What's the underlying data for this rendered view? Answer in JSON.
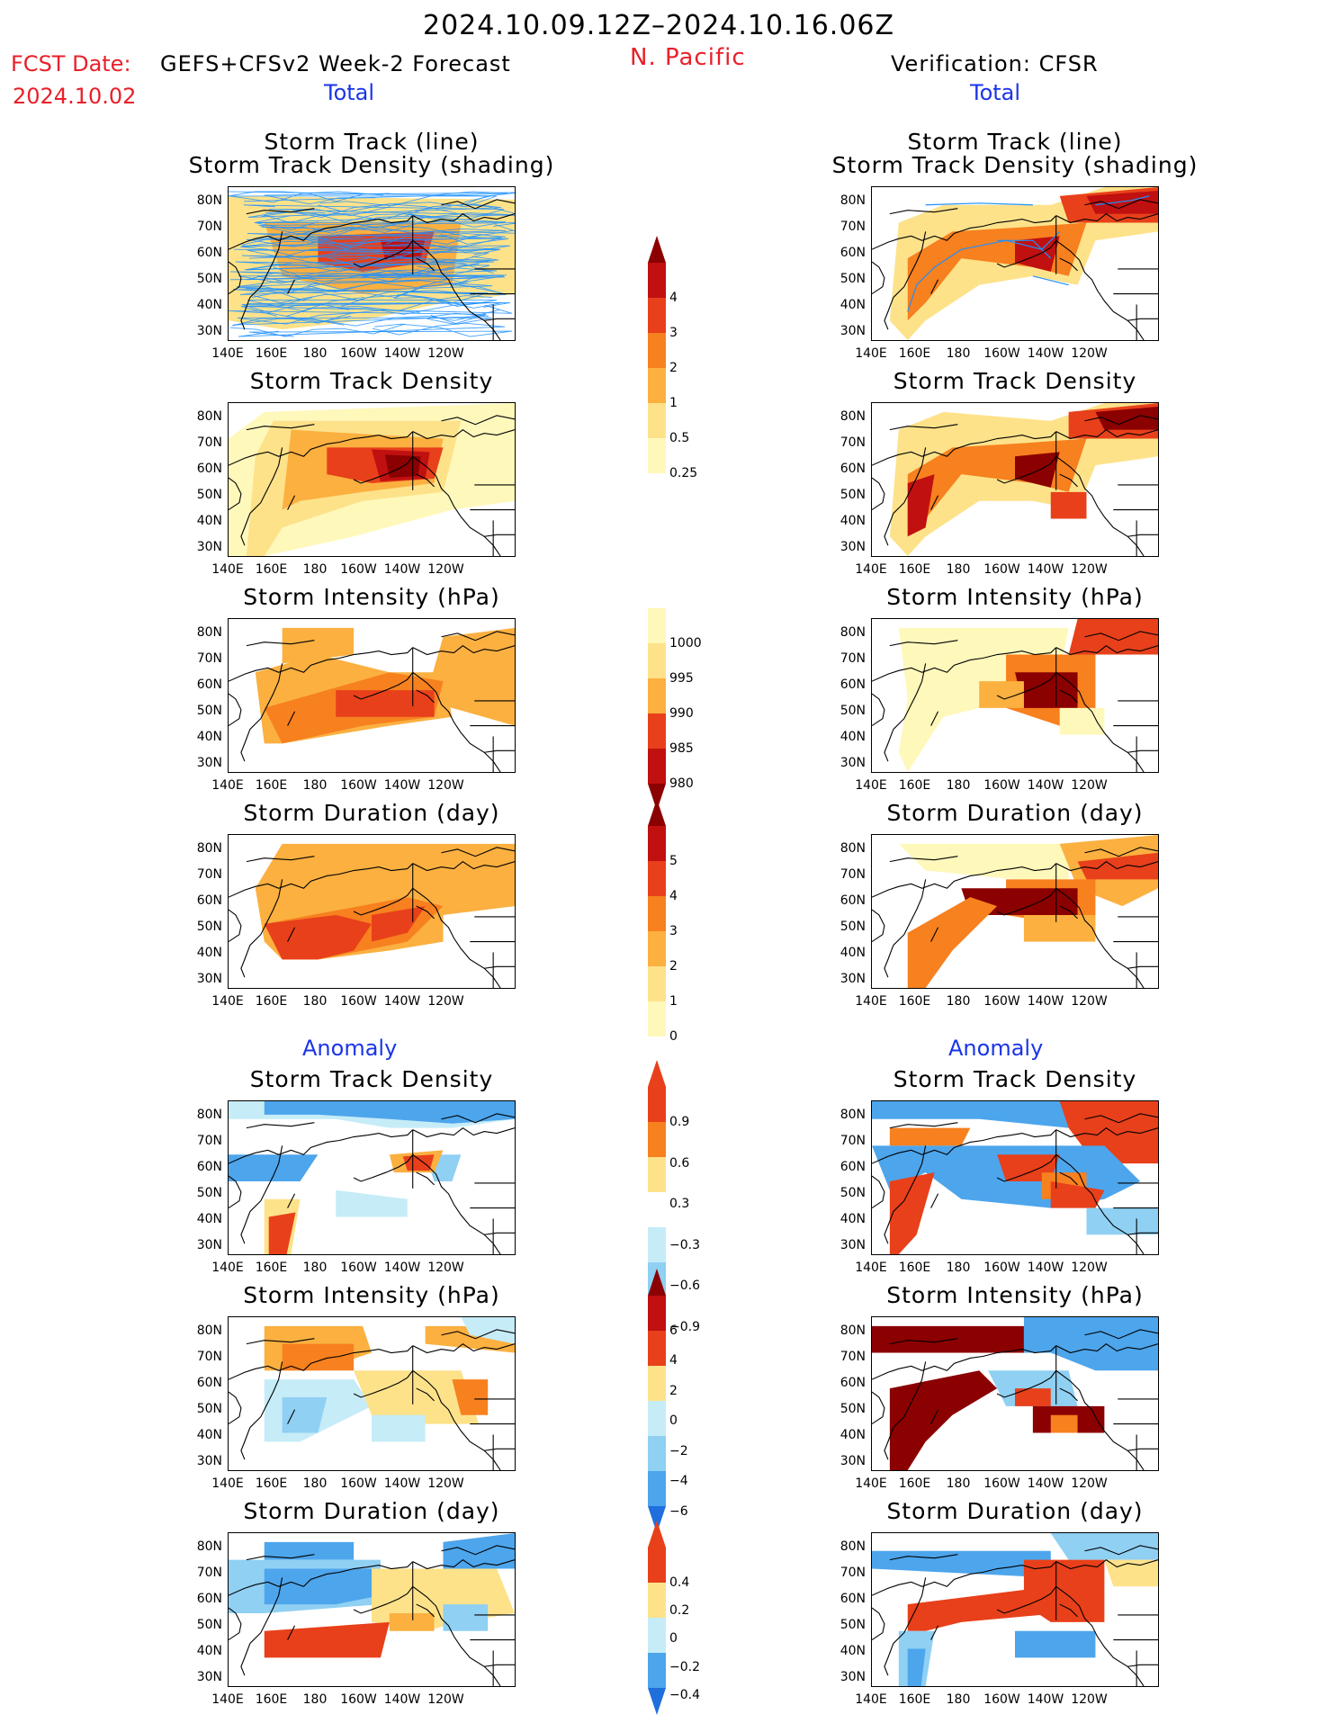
{
  "header": {
    "period": "2024.10.09.12Z–2024.10.16.06Z",
    "fcst_label": "FCST Date:",
    "fcst_model": "GEFS+CFSv2 Week-2 Forecast",
    "fcst_date": "2024.10.02",
    "region": "N. Pacific",
    "verification": "Verification: CFSR"
  },
  "sections": {
    "total": "Total",
    "anomaly": "Anomaly"
  },
  "panel_titles": {
    "track_line": "Storm Track (line)",
    "track_shading": "Storm Track Density (shading)",
    "density": "Storm Track Density",
    "intensity": "Storm Intensity (hPa)",
    "duration": "Storm Duration (day)"
  },
  "axes": {
    "y_ticks": [
      "80N",
      "70N",
      "60N",
      "50N",
      "40N",
      "30N"
    ],
    "x_ticks": [
      "140E",
      "160E",
      "180",
      "160W",
      "140W",
      "120W"
    ]
  },
  "colorbars": {
    "density_total": [
      "4",
      "3",
      "2",
      "1",
      "0.5",
      "0.25"
    ],
    "intensity_total": [
      "1000",
      "995",
      "990",
      "985",
      "980"
    ],
    "duration_total": [
      "5",
      "4",
      "3",
      "2",
      "1",
      "0"
    ],
    "density_anom": [
      "0.9",
      "0.6",
      "0.3",
      "−0.3",
      "−0.6",
      "−0.9"
    ],
    "intensity_anom": [
      "6",
      "4",
      "2",
      "0",
      "−2",
      "−4",
      "−6"
    ],
    "duration_anom": [
      "0.4",
      "0.2",
      "0",
      "−0.2",
      "−0.4"
    ]
  },
  "colors": {
    "warm": [
      "#fff8bb",
      "#fde28a",
      "#fbb040",
      "#f7801f",
      "#e8401a",
      "#c01010",
      "#8b0000"
    ],
    "cool": [
      "#ffffff",
      "#c6ecf8",
      "#8fd0f3",
      "#4da5ec",
      "#1f6fdc",
      "#0a3fbf"
    ],
    "track_line": "#1e90ff"
  }
}
